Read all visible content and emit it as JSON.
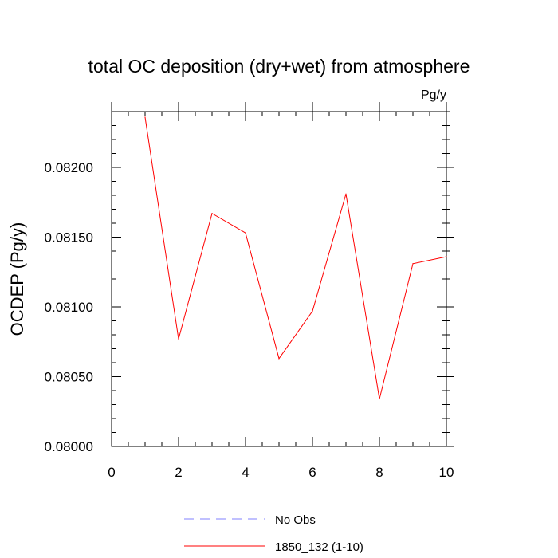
{
  "chart_data": {
    "type": "line",
    "title": "total OC deposition (dry+wet) from atmosphere",
    "units_label": "Pg/y",
    "ylabel": "OCDEP  (Pg/y)",
    "xlabel": "",
    "xlim": [
      0,
      10
    ],
    "ylim": [
      0.08,
      0.0824
    ],
    "x_ticks": [
      0,
      2,
      4,
      6,
      8,
      10
    ],
    "x_tick_labels": [
      "0",
      "2",
      "4",
      "6",
      "8",
      "10"
    ],
    "y_ticks": [
      0.08,
      0.0805,
      0.081,
      0.0815,
      0.082
    ],
    "y_tick_labels": [
      "0.08000",
      "0.08050",
      "0.08100",
      "0.08150",
      "0.08200"
    ],
    "grid": false,
    "series": [
      {
        "name": "1850_132 (1-10)",
        "color": "#ff0000",
        "dash": "solid",
        "x": [
          1,
          2,
          3,
          4,
          5,
          6,
          7,
          8,
          9,
          10
        ],
        "values": [
          0.08236,
          0.08077,
          0.08167,
          0.08153,
          0.08063,
          0.08097,
          0.08181,
          0.08034,
          0.08131,
          0.08136
        ]
      }
    ],
    "legend": [
      {
        "label": "No Obs",
        "color": "#8080ff",
        "dash": "dashed"
      },
      {
        "label": "1850_132 (1-10)",
        "color": "#ff0000",
        "dash": "solid"
      }
    ],
    "legend_position": "bottom-center"
  }
}
